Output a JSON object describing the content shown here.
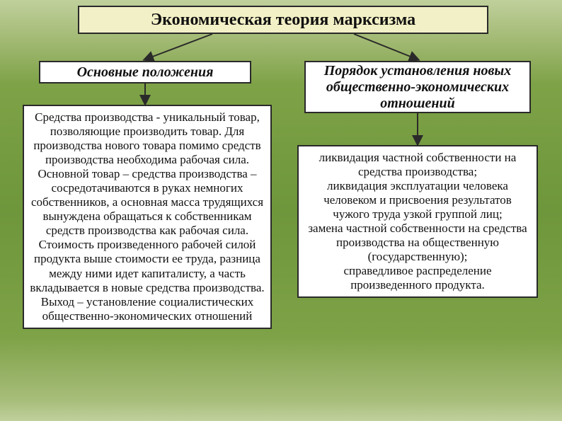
{
  "background": {
    "gradient_colors": [
      "#c0d09c",
      "#a7bd7a",
      "#7ea247",
      "#6e963b"
    ],
    "direction": "vertical"
  },
  "title": {
    "text": "Экономическая теория марксизма",
    "bg_color": "#f2f0c6",
    "border_color": "#2a2a2a",
    "font_size": 24,
    "font_weight": "bold"
  },
  "connectors": {
    "stroke": "#2a2a2a",
    "stroke_width": 2,
    "arrow_size": 8
  },
  "left": {
    "heading": "Основные положения",
    "body": "Средства производства - уникальный товар, позволяющие производить товар. Для производства нового товара помимо средств производства необходима рабочая сила.\nОсновной товар – средства производства – сосредотачиваются в руках немногих собственников, а основная масса трудящихся вынуждена обращаться к собственникам средств производства как рабочая сила.\nСтоимость произведенного рабочей силой продукта выше стоимости ее труда, разница между ними идет капиталисту, а часть вкладывается в новые средства производства. Выход – установление социалистических общественно-экономических отношений"
  },
  "right": {
    "heading": "Порядок установления новых общественно-экономических отношений",
    "body": "ликвидация частной собственности на средства производства;\nликвидация эксплуатации человека человеком и присвоения результатов чужого труда узкой группой лиц;\nзамена частной собственности на средства производства на общественную (государственную);\nсправедливое распределение произведенного продукта."
  },
  "box_style": {
    "bg": "#ffffff",
    "border": "#2a2a2a",
    "heading_fontsize": 20,
    "body_fontsize": 17,
    "heading_style": "italic bold"
  }
}
